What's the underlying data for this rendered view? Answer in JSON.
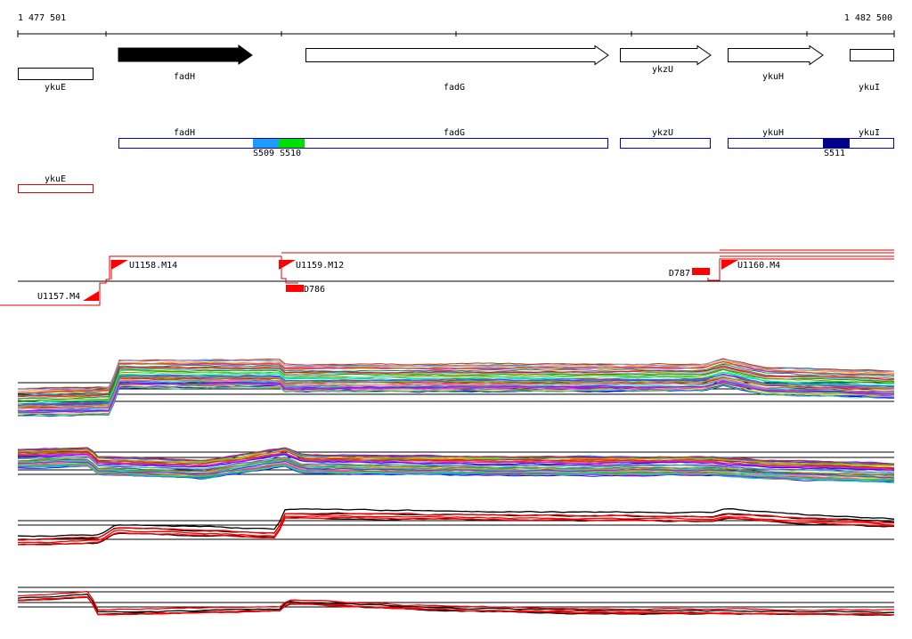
{
  "coords": {
    "start": "1 477 501",
    "end": "1 482 500"
  },
  "genes": [
    {
      "name": "ykuE",
      "strand": "none"
    },
    {
      "name": "fadH",
      "strand": "+",
      "filled": true
    },
    {
      "name": "fadG",
      "strand": "+"
    },
    {
      "name": "ykzU",
      "strand": "+"
    },
    {
      "name": "ykuH",
      "strand": "+"
    },
    {
      "name": "ykuI",
      "strand": "none"
    }
  ],
  "transcripts": [
    {
      "name": "fadH"
    },
    {
      "name": "fadG"
    },
    {
      "name": "ykzU"
    },
    {
      "name": "ykuH"
    },
    {
      "name": "ykuI"
    }
  ],
  "segments": [
    {
      "name": "S509",
      "color": "#1e9bff"
    },
    {
      "name": "S510",
      "color": "#00e000"
    },
    {
      "name": "S511",
      "color": "#00008b"
    }
  ],
  "other_feature": {
    "name": "ykuE",
    "color": "#e00000"
  },
  "upshifts": [
    {
      "name": "U1157.M4"
    },
    {
      "name": "U1158.M14"
    },
    {
      "name": "U1159.M12"
    },
    {
      "name": "U1160.M4"
    }
  ],
  "downshifts": [
    {
      "name": "D786"
    },
    {
      "name": "D787"
    }
  ],
  "colors": {
    "accent": "#ff0000",
    "gene_outline": "#000000",
    "transcript_outline": "#0000cc"
  }
}
